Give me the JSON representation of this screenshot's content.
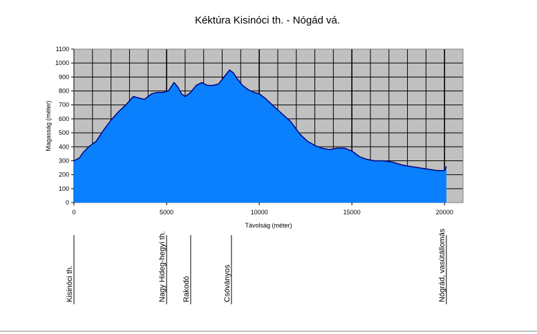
{
  "chart_data": {
    "type": "area",
    "title": "Kéktúra Kisinóci th. - Nógád vá.",
    "xlabel": "Távolság (méter)",
    "ylabel": "Magasság (méter)",
    "xlim": [
      0,
      21000
    ],
    "ylim": [
      0,
      1100
    ],
    "x_ticks": [
      0,
      5000,
      10000,
      15000,
      20000
    ],
    "y_ticks": [
      0,
      100,
      200,
      300,
      400,
      500,
      600,
      700,
      800,
      900,
      1000,
      1100
    ],
    "grid": true,
    "colors": {
      "fill": "#0a80ff",
      "line": "#000080",
      "plot_bg": "#c0c0c0",
      "grid": "#000000"
    },
    "series": [
      {
        "x": [
          0,
          300,
          500,
          800,
          1200,
          1600,
          2000,
          2400,
          2800,
          3200,
          3500,
          3800,
          4200,
          4500,
          4800,
          5100,
          5400,
          5600,
          5800,
          6000,
          6300,
          6600,
          6900,
          7200,
          7500,
          7800,
          8100,
          8400,
          8600,
          8800,
          9100,
          9400,
          9700,
          10000,
          10300,
          10700,
          11200,
          11700,
          12200,
          12600,
          13000,
          13400,
          13800,
          14200,
          14600,
          15000,
          15400,
          15800,
          16200,
          16700,
          17200,
          17700,
          18100,
          18600,
          19100,
          19600,
          20000,
          20100
        ],
        "y": [
          300,
          320,
          360,
          400,
          440,
          520,
          590,
          650,
          700,
          760,
          750,
          740,
          780,
          790,
          790,
          800,
          860,
          830,
          780,
          760,
          790,
          840,
          860,
          840,
          840,
          850,
          900,
          950,
          930,
          890,
          840,
          810,
          790,
          780,
          750,
          700,
          640,
          580,
          490,
          440,
          410,
          390,
          380,
          390,
          390,
          370,
          330,
          310,
          300,
          300,
          290,
          270,
          260,
          250,
          240,
          230,
          230,
          260
        ]
      }
    ],
    "waypoints": [
      {
        "x": 0,
        "label": "Kisinóci th."
      },
      {
        "x": 5000,
        "label": "Nagy Hideg-hegyi th."
      },
      {
        "x": 6300,
        "label": "Rakodó"
      },
      {
        "x": 8500,
        "label": "Csóványos"
      },
      {
        "x": 20100,
        "label": "Nógrád, vasútállomás"
      }
    ]
  }
}
